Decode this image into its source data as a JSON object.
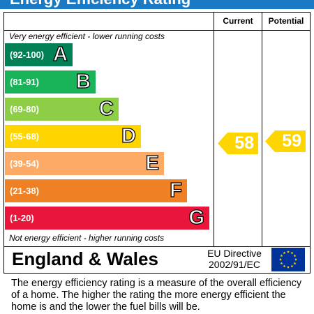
{
  "header": {
    "title": "Energy Efficiency Rating"
  },
  "columns": {
    "current": "Current",
    "potential": "Potential"
  },
  "notes": {
    "top": "Very energy efficient - lower running costs",
    "bottom": "Not energy efficient - higher running costs"
  },
  "bands": [
    {
      "range": "(92-100)",
      "letter": "A",
      "color": "#008054"
    },
    {
      "range": "(81-91)",
      "letter": "B",
      "color": "#19b459"
    },
    {
      "range": "(69-80)",
      "letter": "C",
      "color": "#8dce46"
    },
    {
      "range": "(55-68)",
      "letter": "D",
      "color": "#ffd500"
    },
    {
      "range": "(39-54)",
      "letter": "E",
      "color": "#fcaa65"
    },
    {
      "range": "(21-38)",
      "letter": "F",
      "color": "#ef8023"
    },
    {
      "range": "(1-20)",
      "letter": "G",
      "color": "#e9153b"
    }
  ],
  "ratings": {
    "current": {
      "value": "58",
      "color": "#ffd500"
    },
    "potential": {
      "value": "59",
      "color": "#ffd500"
    }
  },
  "footer": {
    "country": "England & Wales",
    "directive_line1": "EU Directive",
    "directive_line2": "2002/91/EC",
    "flag_icon": "eu-flag-icon"
  },
  "description": "The energy efficiency rating is a measure of the overall efficiency of a home.  The higher the rating the more energy efficient the home is and the lower the fuel bills will be."
}
